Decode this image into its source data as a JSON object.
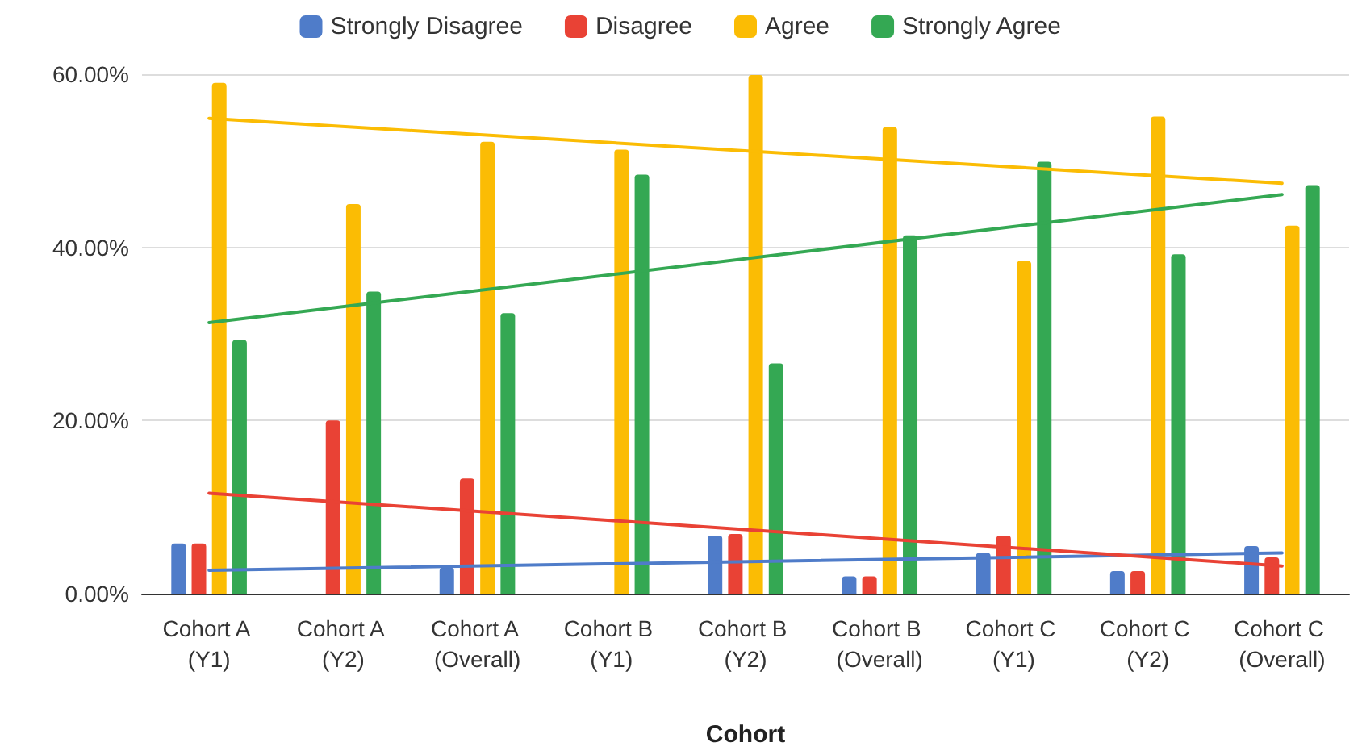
{
  "chart_data": {
    "type": "bar",
    "xlabel": "Cohort",
    "categories": [
      "Cohort A (Y1)",
      "Cohort A (Y2)",
      "Cohort A (Overall)",
      "Cohort B (Y1)",
      "Cohort B (Y2)",
      "Cohort B (Overall)",
      "Cohort C (Y1)",
      "Cohort C (Y2)",
      "Cohort C (Overall)"
    ],
    "series": [
      {
        "name": "Strongly Disagree",
        "color": "#4f7cc9",
        "values": [
          5.8,
          0,
          3.0,
          0,
          6.7,
          2.0,
          4.7,
          2.6,
          5.5
        ]
      },
      {
        "name": "Disagree",
        "color": "#e94235",
        "values": [
          5.8,
          20.0,
          13.3,
          0,
          6.9,
          2.0,
          6.7,
          2.6,
          4.2
        ]
      },
      {
        "name": "Agree",
        "color": "#fbbc04",
        "values": [
          59.0,
          45.0,
          52.2,
          51.3,
          59.9,
          53.9,
          38.4,
          55.1,
          42.5
        ]
      },
      {
        "name": "Strongly Agree",
        "color": "#34a853",
        "values": [
          29.3,
          34.9,
          32.4,
          48.4,
          26.6,
          41.4,
          49.9,
          39.2,
          47.2
        ]
      },
      {
        "type": "line",
        "color": "#4f7cc9",
        "marker": "none",
        "x": [
          "Cohort A (Y1)",
          "Cohort C (Overall)"
        ],
        "values": [
          2.7,
          4.7
        ]
      },
      {
        "type": "line",
        "color": "#e94235",
        "marker": "none",
        "x": [
          "Cohort A (Y1)",
          "Cohort C (Overall)"
        ],
        "values": [
          11.6,
          3.2
        ]
      },
      {
        "type": "line",
        "color": "#fbbc04",
        "marker": "none",
        "x": [
          "Cohort A (Y1)",
          "Cohort C (Overall)"
        ],
        "values": [
          54.9,
          47.4
        ]
      },
      {
        "type": "line",
        "color": "#34a853",
        "marker": "none",
        "x": [
          "Cohort A (Y1)",
          "Cohort C (Overall)"
        ],
        "values": [
          31.3,
          46.1
        ]
      }
    ],
    "ylim": [
      0,
      60
    ],
    "yticks": [
      {
        "value": 0,
        "label": "0.00%"
      },
      {
        "value": 20,
        "label": "20.00%"
      },
      {
        "value": 40,
        "label": "40.00%"
      },
      {
        "value": 60,
        "label": "60.00%"
      }
    ],
    "grid": "y",
    "legend": "top"
  }
}
